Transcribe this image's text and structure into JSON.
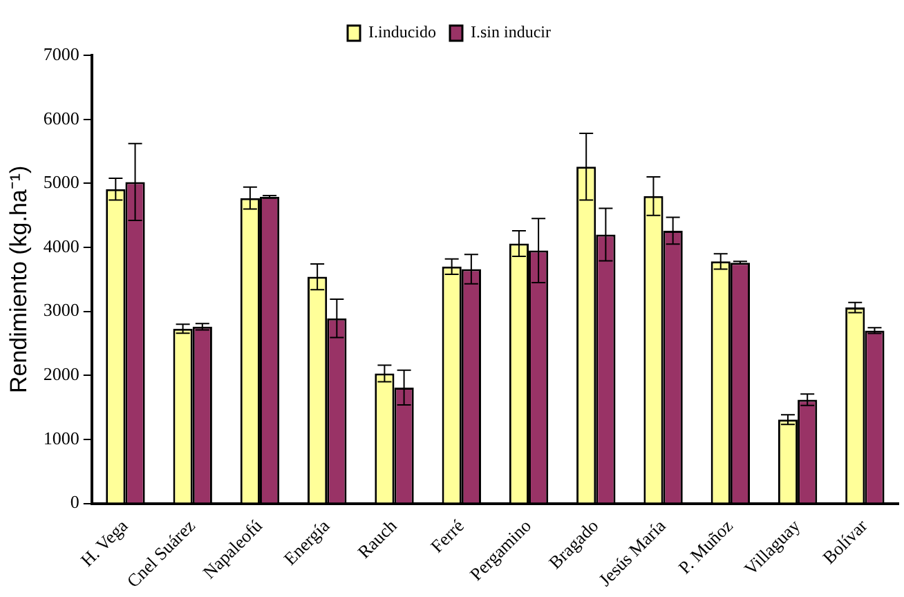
{
  "chart_data": {
    "type": "bar",
    "ylabel": "Rendimiento (kg.ha⁻¹)",
    "categories": [
      "H. Vega",
      "Cnel Suárez",
      "Napaleofú",
      "Energía",
      "Rauch",
      "Ferré",
      "Pergamino",
      "Bragado",
      "Jesús María",
      "P. Muñoz",
      "Villaguay",
      "Bolívar"
    ],
    "series": [
      {
        "name": "I.inducido",
        "color": "#ffff99",
        "values": [
          4910,
          2730,
          4770,
          3540,
          2030,
          3700,
          4060,
          5260,
          4800,
          3780,
          1310,
          3060
        ],
        "errors": [
          170,
          70,
          170,
          200,
          130,
          120,
          200,
          520,
          300,
          120,
          75,
          80
        ]
      },
      {
        "name": "I.sin inducir",
        "color": "#993366",
        "values": [
          5020,
          2760,
          4790,
          2890,
          1810,
          3660,
          3950,
          4200,
          4260,
          3760,
          1620,
          2700
        ],
        "errors": [
          600,
          50,
          20,
          300,
          270,
          230,
          500,
          410,
          210,
          20,
          90,
          45
        ]
      }
    ],
    "ylim": [
      0,
      7000
    ],
    "yticks": [
      0,
      1000,
      2000,
      3000,
      4000,
      5000,
      6000,
      7000
    ],
    "grid": false,
    "legend": "top"
  }
}
